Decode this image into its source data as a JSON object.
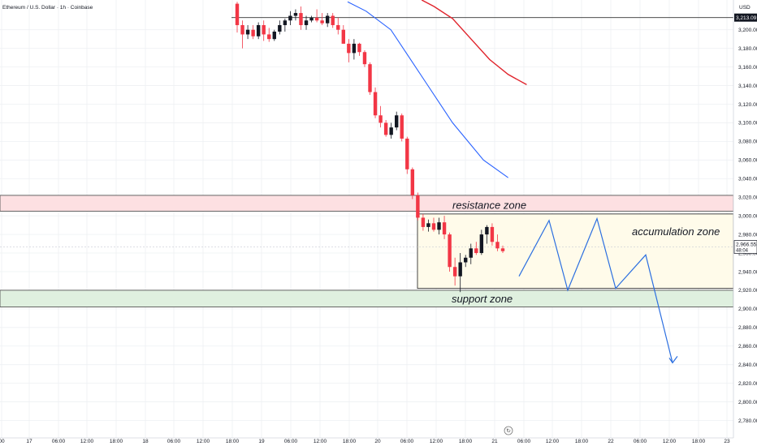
{
  "chart_data": {
    "type": "candlestick",
    "title": "Ethereum / U.S. Dollar · 1h · Coinbase",
    "currency": "USD",
    "y_ticks": [
      "3,200.00",
      "3,180.00",
      "3,160.00",
      "3,140.00",
      "3,120.00",
      "3,100.00",
      "3,080.00",
      "3,060.00",
      "3,040.00",
      "3,020.00",
      "3,000.00",
      "2,980.00",
      "2,960.00",
      "2,940.00",
      "2,920.00",
      "2,900.00",
      "2,880.00",
      "2,860.00",
      "2,840.00",
      "2,820.00",
      "2,800.00",
      "2,780.00"
    ],
    "x_ticks": [
      "00",
      "17",
      "06:00",
      "12:00",
      "18:00",
      "18",
      "06:00",
      "12:00",
      "18:00",
      "19",
      "06:00",
      "12:00",
      "18:00",
      "20",
      "06:00",
      "12:00",
      "18:00",
      "21",
      "06:00",
      "12:00",
      "18:00",
      "22",
      "06:00",
      "12:00",
      "18:00",
      "23"
    ],
    "ylim": [
      2770,
      3232
    ],
    "candles": [
      [
        3228,
        3230,
        3197,
        3205
      ],
      [
        3205,
        3210,
        3180,
        3195
      ],
      [
        3195,
        3205,
        3190,
        3200
      ],
      [
        3200,
        3205,
        3190,
        3193
      ],
      [
        3193,
        3208,
        3190,
        3205
      ],
      [
        3205,
        3210,
        3188,
        3195
      ],
      [
        3195,
        3202,
        3187,
        3190
      ],
      [
        3190,
        3200,
        3188,
        3198
      ],
      [
        3198,
        3210,
        3195,
        3205
      ],
      [
        3205,
        3212,
        3198,
        3210
      ],
      [
        3210,
        3220,
        3205,
        3215
      ],
      [
        3215,
        3222,
        3210,
        3218
      ],
      [
        3218,
        3225,
        3200,
        3205
      ],
      [
        3205,
        3215,
        3200,
        3210
      ],
      [
        3210,
        3215,
        3208,
        3213
      ],
      [
        3213,
        3222,
        3208,
        3210
      ],
      [
        3210,
        3218,
        3205,
        3207
      ],
      [
        3207,
        3218,
        3203,
        3215
      ],
      [
        3215,
        3218,
        3202,
        3205
      ],
      [
        3205,
        3213,
        3195,
        3200
      ],
      [
        3200,
        3205,
        3185,
        3185
      ],
      [
        3185,
        3190,
        3165,
        3175
      ],
      [
        3175,
        3190,
        3168,
        3185
      ],
      [
        3185,
        3186,
        3172,
        3176
      ],
      [
        3176,
        3178,
        3160,
        3163
      ],
      [
        3163,
        3165,
        3130,
        3133
      ],
      [
        3133,
        3138,
        3105,
        3108
      ],
      [
        3108,
        3118,
        3095,
        3100
      ],
      [
        3100,
        3103,
        3085,
        3087
      ],
      [
        3087,
        3100,
        3083,
        3095
      ],
      [
        3095,
        3112,
        3092,
        3108
      ],
      [
        3108,
        3110,
        3080,
        3083
      ],
      [
        3083,
        3085,
        3045,
        3050
      ],
      [
        3050,
        3052,
        3018,
        3022
      ],
      [
        3022,
        3025,
        2995,
        2998
      ],
      [
        2998,
        3002,
        2984,
        2988
      ],
      [
        2988,
        2996,
        2983,
        2992
      ],
      [
        2992,
        2998,
        2983,
        2985
      ],
      [
        2985,
        2998,
        2980,
        2993
      ],
      [
        2993,
        3000,
        2975,
        2980
      ],
      [
        2980,
        2982,
        2940,
        2945
      ],
      [
        2945,
        2955,
        2925,
        2935
      ],
      [
        2935,
        2960,
        2918,
        2950
      ],
      [
        2950,
        2958,
        2945,
        2955
      ],
      [
        2955,
        2970,
        2948,
        2965
      ],
      [
        2965,
        2972,
        2958,
        2960
      ],
      [
        2960,
        2985,
        2958,
        2980
      ],
      [
        2980,
        2990,
        2970,
        2988
      ],
      [
        2988,
        2992,
        2968,
        2972
      ],
      [
        2972,
        2980,
        2962,
        2965
      ],
      [
        2965,
        2968,
        2960,
        2962
      ]
    ],
    "ma_blue": [
      [
        3230,
        0
      ],
      [
        3220,
        3
      ],
      [
        3200,
        7
      ],
      [
        3170,
        10
      ],
      [
        3140,
        13
      ],
      [
        3100,
        17
      ],
      [
        3060,
        22
      ],
      [
        3041,
        26
      ]
    ],
    "ma_red": [
      [
        3232,
        12
      ],
      [
        3225,
        14
      ],
      [
        3212,
        17
      ],
      [
        3190,
        20
      ],
      [
        3168,
        23
      ],
      [
        3152,
        26
      ],
      [
        3141,
        29
      ]
    ],
    "price_label": [
      "2,966.55",
      "48:04"
    ],
    "price_tag_top": "3,213.09",
    "projection": [
      [
        2935,
        54
      ],
      [
        2995,
        61
      ],
      [
        2920,
        66
      ],
      [
        2997,
        72
      ],
      [
        2922,
        77
      ],
      [
        2958,
        82
      ],
      [
        2842,
        88
      ]
    ],
    "zones": {
      "resistance": {
        "label": "resistance zone",
        "from": 3005,
        "to": 3022
      },
      "accumulation": {
        "label": "accumulation zone",
        "from": 2922,
        "to": 3002
      },
      "support": {
        "label": "support zone",
        "from": 2902,
        "to": 2920
      }
    },
    "colors": {
      "up": "#131722",
      "down": "#f23645",
      "ma_blue": "#2962ff",
      "ma_red": "#e0232b",
      "projection": "#2c6fe0"
    }
  }
}
